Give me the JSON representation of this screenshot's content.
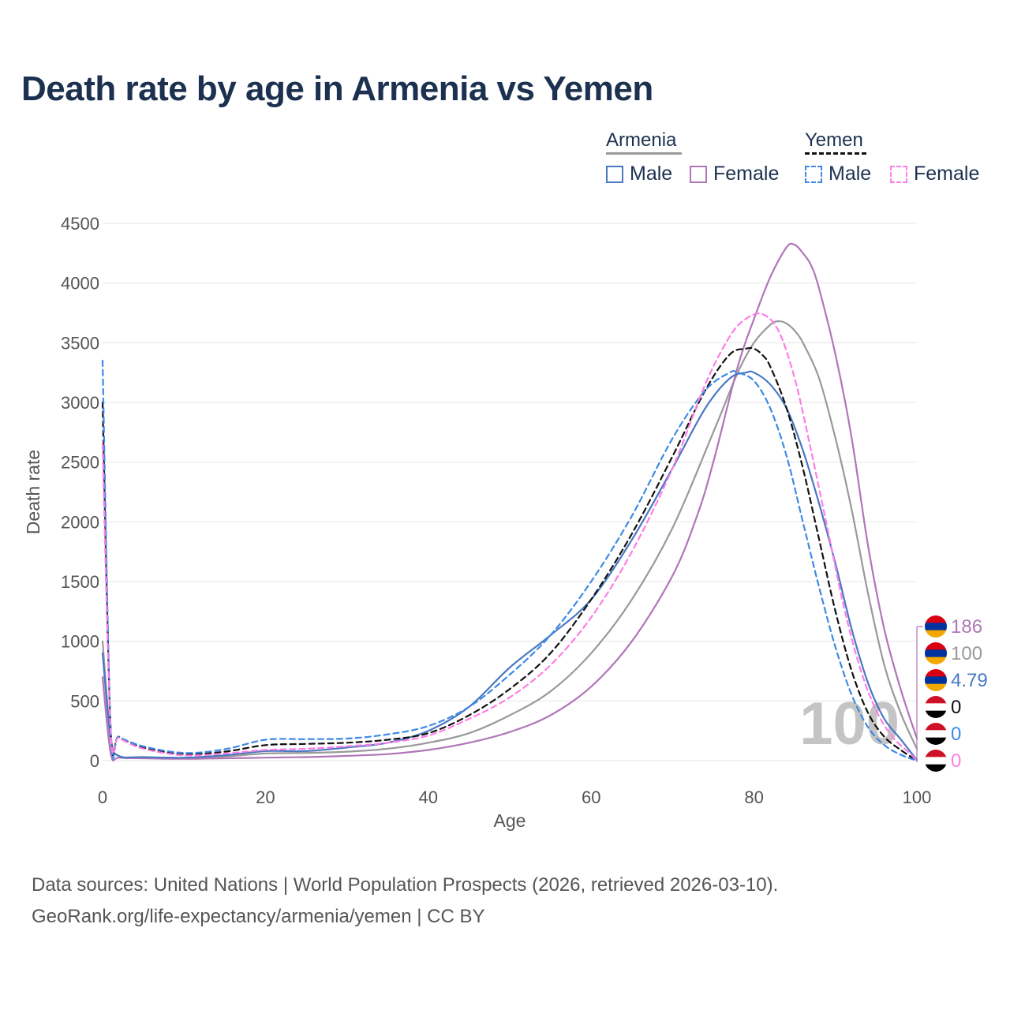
{
  "title": "Death rate by age in Armenia vs Yemen",
  "legend": {
    "groups": [
      {
        "name": "Armenia",
        "line_color": "#999999",
        "line_style": "solid",
        "items": [
          {
            "label": "Male",
            "color": "#4a78c2",
            "style": "solid"
          },
          {
            "label": "Female",
            "color": "#b076b8",
            "style": "solid"
          }
        ]
      },
      {
        "name": "Yemen",
        "line_color": "#111111",
        "line_style": "dashed",
        "items": [
          {
            "label": "Male",
            "color": "#3d8ae6",
            "style": "dashed"
          },
          {
            "label": "Female",
            "color": "#ff7de6",
            "style": "dashed"
          }
        ]
      }
    ]
  },
  "chart_data": {
    "type": "line",
    "title": "Death rate by age in Armenia vs Yemen",
    "xlabel": "Age",
    "ylabel": "Death rate",
    "xlim": [
      0,
      100
    ],
    "ylim": [
      0,
      4500
    ],
    "xticks": [
      0,
      20,
      40,
      60,
      80,
      100
    ],
    "yticks": [
      0,
      500,
      1000,
      1500,
      2000,
      2500,
      3000,
      3500,
      4000,
      4500
    ],
    "grid": true,
    "watermark": "100",
    "series": [
      {
        "name": "Armenia Total",
        "color": "#999999",
        "dash": "",
        "points": [
          [
            0,
            1000
          ],
          [
            1,
            200
          ],
          [
            2,
            40
          ],
          [
            5,
            25
          ],
          [
            10,
            20
          ],
          [
            15,
            35
          ],
          [
            20,
            60
          ],
          [
            25,
            65
          ],
          [
            30,
            75
          ],
          [
            35,
            100
          ],
          [
            40,
            150
          ],
          [
            45,
            230
          ],
          [
            50,
            380
          ],
          [
            55,
            580
          ],
          [
            60,
            900
          ],
          [
            65,
            1350
          ],
          [
            70,
            1950
          ],
          [
            75,
            2750
          ],
          [
            78,
            3250
          ],
          [
            80,
            3500
          ],
          [
            82,
            3650
          ],
          [
            83,
            3680
          ],
          [
            84,
            3660
          ],
          [
            85,
            3600
          ],
          [
            86,
            3500
          ],
          [
            88,
            3200
          ],
          [
            90,
            2700
          ],
          [
            92,
            2100
          ],
          [
            94,
            1400
          ],
          [
            96,
            800
          ],
          [
            98,
            400
          ],
          [
            100,
            100
          ]
        ]
      },
      {
        "name": "Armenia Female",
        "color": "#b076b8",
        "dash": "",
        "points": [
          [
            0,
            700
          ],
          [
            1,
            60
          ],
          [
            2,
            25
          ],
          [
            5,
            20
          ],
          [
            10,
            15
          ],
          [
            15,
            20
          ],
          [
            20,
            25
          ],
          [
            25,
            30
          ],
          [
            30,
            40
          ],
          [
            35,
            55
          ],
          [
            40,
            90
          ],
          [
            45,
            150
          ],
          [
            50,
            240
          ],
          [
            55,
            380
          ],
          [
            60,
            620
          ],
          [
            65,
            1000
          ],
          [
            70,
            1550
          ],
          [
            73,
            2050
          ],
          [
            75,
            2500
          ],
          [
            78,
            3300
          ],
          [
            80,
            3700
          ],
          [
            82,
            4050
          ],
          [
            84,
            4300
          ],
          [
            85,
            4320
          ],
          [
            86,
            4250
          ],
          [
            87,
            4150
          ],
          [
            88,
            3950
          ],
          [
            90,
            3400
          ],
          [
            92,
            2700
          ],
          [
            94,
            1800
          ],
          [
            96,
            1100
          ],
          [
            98,
            600
          ],
          [
            100,
            186
          ]
        ]
      },
      {
        "name": "Armenia Male",
        "color": "#4a78c2",
        "dash": "",
        "points": [
          [
            0,
            900
          ],
          [
            1,
            180
          ],
          [
            2,
            40
          ],
          [
            5,
            30
          ],
          [
            10,
            25
          ],
          [
            15,
            45
          ],
          [
            20,
            80
          ],
          [
            25,
            80
          ],
          [
            30,
            110
          ],
          [
            35,
            150
          ],
          [
            40,
            250
          ],
          [
            45,
            450
          ],
          [
            50,
            780
          ],
          [
            55,
            1050
          ],
          [
            60,
            1350
          ],
          [
            65,
            1850
          ],
          [
            70,
            2450
          ],
          [
            74,
            2950
          ],
          [
            77,
            3200
          ],
          [
            79,
            3250
          ],
          [
            80,
            3250
          ],
          [
            82,
            3150
          ],
          [
            84,
            2950
          ],
          [
            86,
            2600
          ],
          [
            88,
            2150
          ],
          [
            90,
            1650
          ],
          [
            92,
            1100
          ],
          [
            94,
            650
          ],
          [
            96,
            350
          ],
          [
            98,
            180
          ],
          [
            100,
            5
          ]
        ]
      },
      {
        "name": "Yemen Total",
        "color": "#111111",
        "dash": "7,5",
        "points": [
          [
            0,
            3000
          ],
          [
            1,
            260
          ],
          [
            2,
            200
          ],
          [
            5,
            110
          ],
          [
            10,
            55
          ],
          [
            15,
            75
          ],
          [
            20,
            130
          ],
          [
            25,
            140
          ],
          [
            30,
            150
          ],
          [
            35,
            175
          ],
          [
            40,
            230
          ],
          [
            45,
            380
          ],
          [
            50,
            600
          ],
          [
            55,
            900
          ],
          [
            60,
            1350
          ],
          [
            65,
            1900
          ],
          [
            70,
            2550
          ],
          [
            74,
            3100
          ],
          [
            77,
            3400
          ],
          [
            79,
            3450
          ],
          [
            80,
            3450
          ],
          [
            81,
            3400
          ],
          [
            82,
            3300
          ],
          [
            84,
            2950
          ],
          [
            86,
            2450
          ],
          [
            88,
            1850
          ],
          [
            90,
            1250
          ],
          [
            92,
            750
          ],
          [
            94,
            400
          ],
          [
            96,
            200
          ],
          [
            98,
            90
          ],
          [
            100,
            0
          ]
        ]
      },
      {
        "name": "Yemen Male",
        "color": "#3d8ae6",
        "dash": "7,5",
        "points": [
          [
            0,
            3350
          ],
          [
            1,
            260
          ],
          [
            2,
            200
          ],
          [
            5,
            120
          ],
          [
            10,
            65
          ],
          [
            15,
            95
          ],
          [
            20,
            175
          ],
          [
            25,
            180
          ],
          [
            30,
            185
          ],
          [
            35,
            220
          ],
          [
            40,
            290
          ],
          [
            45,
            450
          ],
          [
            50,
            720
          ],
          [
            55,
            1050
          ],
          [
            60,
            1500
          ],
          [
            65,
            2050
          ],
          [
            70,
            2700
          ],
          [
            74,
            3100
          ],
          [
            77,
            3250
          ],
          [
            78,
            3250
          ],
          [
            80,
            3180
          ],
          [
            82,
            2950
          ],
          [
            84,
            2550
          ],
          [
            86,
            2000
          ],
          [
            88,
            1450
          ],
          [
            90,
            950
          ],
          [
            92,
            550
          ],
          [
            94,
            280
          ],
          [
            96,
            130
          ],
          [
            98,
            50
          ],
          [
            100,
            0
          ]
        ]
      },
      {
        "name": "Yemen Female",
        "color": "#ff7de6",
        "dash": "7,5",
        "points": [
          [
            0,
            2650
          ],
          [
            1,
            250
          ],
          [
            2,
            190
          ],
          [
            5,
            100
          ],
          [
            10,
            45
          ],
          [
            15,
            60
          ],
          [
            20,
            90
          ],
          [
            25,
            100
          ],
          [
            30,
            120
          ],
          [
            35,
            150
          ],
          [
            40,
            210
          ],
          [
            45,
            350
          ],
          [
            50,
            530
          ],
          [
            55,
            800
          ],
          [
            60,
            1200
          ],
          [
            65,
            1750
          ],
          [
            70,
            2450
          ],
          [
            74,
            3150
          ],
          [
            77,
            3550
          ],
          [
            79,
            3700
          ],
          [
            81,
            3740
          ],
          [
            83,
            3600
          ],
          [
            85,
            3200
          ],
          [
            87,
            2600
          ],
          [
            89,
            1950
          ],
          [
            91,
            1300
          ],
          [
            93,
            780
          ],
          [
            95,
            420
          ],
          [
            97,
            200
          ],
          [
            99,
            70
          ],
          [
            100,
            0
          ]
        ]
      }
    ],
    "end_labels": [
      {
        "value": "186",
        "color": "#b076b8",
        "country": "Armenia"
      },
      {
        "value": "100",
        "color": "#999999",
        "country": "Armenia"
      },
      {
        "value": "4.79",
        "color": "#4a78c2",
        "country": "Armenia"
      },
      {
        "value": "0",
        "color": "#111111",
        "country": "Yemen"
      },
      {
        "value": "0",
        "color": "#3d8ae6",
        "country": "Yemen"
      },
      {
        "value": "0",
        "color": "#ff7de6",
        "country": "Yemen"
      }
    ]
  },
  "footer": {
    "line1": "Data sources: United Nations | World Population Prospects (2026, retrieved 2026-03-10).",
    "line2": "GeoRank.org/life-expectancy/armenia/yemen | CC BY"
  }
}
